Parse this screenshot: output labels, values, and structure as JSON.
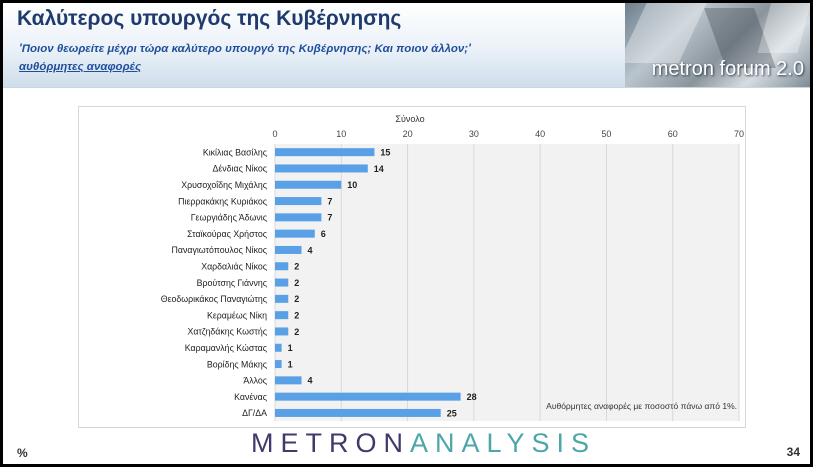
{
  "header": {
    "title": "Καλύτερος υπουργός της Κυβέρνησης",
    "subtitle": "'Ποιον θεωρείτε μέχρι τώρα καλύτερο υπουργό της Κυβέρνησης; Και ποιον άλλον;'",
    "note": "αυθόρμητες αναφορές",
    "brand": "metron forum 2.0"
  },
  "footer": {
    "logo_part1": "METRON",
    "logo_part2": "ANALYSIS",
    "percent_sign": "%",
    "page_number": "34"
  },
  "colors": {
    "bar": "#5aa0e6",
    "title": "#1f3b6e",
    "grid": "#d9d9d9",
    "plot_bg": "#f2f2f2"
  },
  "chart_data": {
    "type": "bar",
    "orientation": "horizontal",
    "title": "Σύνολο",
    "categories": [
      "Κικίλιας Βασίλης",
      "Δένδιας Νίκος",
      "Χρυσοχοΐδης Μιχάλης",
      "Πιερρακάκης Κυριάκος",
      "Γεωργιάδης Άδωνις",
      "Σταϊκούρας Χρήστος",
      "Παναγιωτόπουλος Νίκος",
      "Χαρδαλιάς Νίκος",
      "Βρούτσης Γιάννης",
      "Θεοδωρικάκος Παναγιώτης",
      "Κεραμέως Νίκη",
      "Χατζηδάκης Κωστής",
      "Καραμανλής Κώστας",
      "Βορίδης Μάκης",
      "Άλλος",
      "Κανένας",
      "ΔΓ/ΔΑ"
    ],
    "values": [
      15,
      14,
      10,
      7,
      7,
      6,
      4,
      2,
      2,
      2,
      2,
      2,
      1,
      1,
      4,
      28,
      25
    ],
    "xlim": [
      0,
      70
    ],
    "ticks": [
      0,
      10,
      20,
      30,
      40,
      50,
      60,
      70
    ],
    "grid": true,
    "annotation": "Αυθόρμητες αναφορές με ποσοστό πάνω από 1%."
  }
}
